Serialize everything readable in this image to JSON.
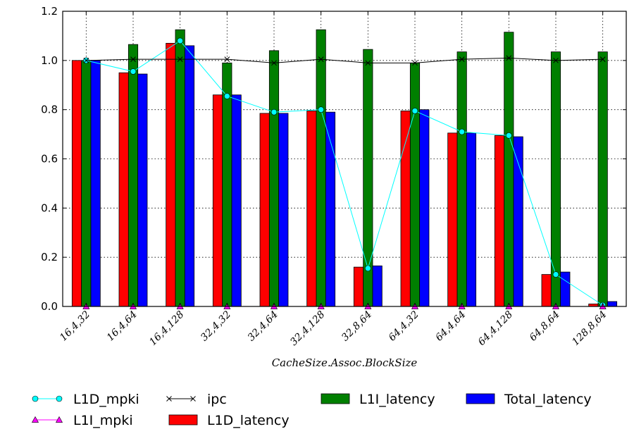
{
  "chart_data": {
    "type": "bar",
    "xlabel": "CacheSize.Assoc.BlockSize",
    "ylim": [
      0,
      1.2
    ],
    "yticks": [
      0.0,
      0.2,
      0.4,
      0.6,
      0.8,
      1.0,
      1.2
    ],
    "ytick_labels": [
      "0.0",
      "0.2",
      "0.4",
      "0.6",
      "0.8",
      "1.0",
      "1.2"
    ],
    "grid": true,
    "legend_position": "bottom",
    "categories": [
      "16,4,32",
      "16,4,64",
      "16,4,128",
      "32,4,32",
      "32,4,64",
      "32,4,128",
      "32,8,64",
      "64,4,32",
      "64,4,64",
      "64,4,128",
      "64,8,64",
      "128,8,64"
    ],
    "bar_series": [
      {
        "name": "L1D_latency",
        "color": "#ff0000",
        "values": [
          1.0,
          0.95,
          1.07,
          0.86,
          0.785,
          0.795,
          0.16,
          0.795,
          0.705,
          0.695,
          0.13,
          0.01
        ]
      },
      {
        "name": "L1I_latency",
        "color": "#007f00",
        "values": [
          1.0,
          1.065,
          1.125,
          0.99,
          1.04,
          1.125,
          1.045,
          0.99,
          1.035,
          1.115,
          1.035,
          1.035
        ]
      },
      {
        "name": "Total_latency",
        "color": "#0000ff",
        "values": [
          1.0,
          0.945,
          1.06,
          0.86,
          0.785,
          0.79,
          0.165,
          0.8,
          0.705,
          0.69,
          0.14,
          0.02
        ]
      }
    ],
    "line_series": [
      {
        "name": "L1D_mpki",
        "color": "#00ffff",
        "marker": "circle",
        "values": [
          1.0,
          0.955,
          1.08,
          0.855,
          0.79,
          0.8,
          0.155,
          0.795,
          0.71,
          0.695,
          0.13,
          0.005
        ]
      },
      {
        "name": "L1I_mpki",
        "color": "#ff00ff",
        "marker": "triangle",
        "values": [
          0,
          0,
          0,
          0,
          0,
          0,
          0,
          0,
          0,
          0,
          0,
          0
        ]
      },
      {
        "name": "ipc",
        "color": "#000000",
        "marker": "x",
        "values": [
          1.0,
          1.005,
          1.005,
          1.005,
          0.99,
          1.005,
          0.99,
          0.99,
          1.005,
          1.01,
          1.0,
          1.005
        ]
      }
    ],
    "legend": {
      "items": [
        {
          "name": "L1D_mpki",
          "kind": "line",
          "marker": "circle",
          "color": "#00ffff"
        },
        {
          "name": "L1I_mpki",
          "kind": "line",
          "marker": "triangle",
          "color": "#ff00ff"
        },
        {
          "name": "ipc",
          "kind": "line",
          "marker": "x",
          "color": "#000000"
        },
        {
          "name": "L1D_latency",
          "kind": "bar",
          "color": "#ff0000"
        },
        {
          "name": "L1I_latency",
          "kind": "bar",
          "color": "#007f00"
        },
        {
          "name": "Total_latency",
          "kind": "bar",
          "color": "#0000ff"
        }
      ]
    }
  }
}
